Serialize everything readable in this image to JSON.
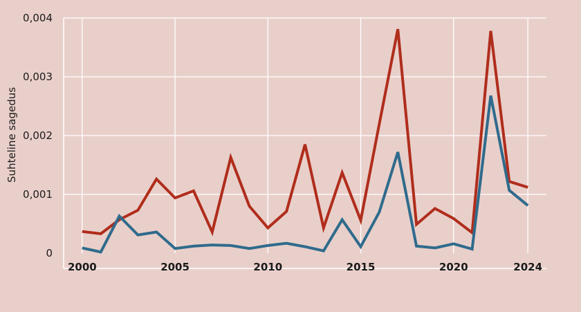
{
  "chart_data": {
    "type": "line",
    "title": "",
    "xlabel": "",
    "ylabel": "Suhteline sagedus",
    "xlim": [
      1999,
      2025
    ],
    "ylim": [
      0,
      0.004
    ],
    "grid": true,
    "legend": "none",
    "x_ticks": [
      2000,
      2005,
      2010,
      2015,
      2020,
      2024
    ],
    "x_tick_labels": [
      "2000",
      "2005",
      "2010",
      "2015",
      "2020",
      "2024"
    ],
    "y_ticks": [
      0,
      0.001,
      0.002,
      0.003,
      0.004
    ],
    "y_tick_labels": [
      "0",
      "0,001",
      "0,002",
      "0,003",
      "0,004"
    ],
    "x": [
      2000,
      2001,
      2002,
      2003,
      2004,
      2005,
      2006,
      2007,
      2008,
      2009,
      2010,
      2011,
      2012,
      2013,
      2014,
      2015,
      2016,
      2017,
      2018,
      2019,
      2020,
      2021,
      2022,
      2023,
      2024
    ],
    "series": [
      {
        "color": "#b02d1c",
        "values": [
          0.00037,
          0.00033,
          0.00057,
          0.00073,
          0.00126,
          0.00094,
          0.00106,
          0.00036,
          0.00163,
          0.0008,
          0.00043,
          0.00071,
          0.00185,
          0.00043,
          0.00137,
          0.00056,
          0.0022,
          0.00381,
          0.00049,
          0.00076,
          0.00059,
          0.00035,
          0.00378,
          0.00122,
          0.00112
        ]
      },
      {
        "color": "#2f6b8c",
        "values": [
          9e-05,
          2e-05,
          0.00063,
          0.00031,
          0.00036,
          8e-05,
          0.00012,
          0.00014,
          0.00013,
          8e-05,
          0.00013,
          0.00017,
          0.00011,
          4e-05,
          0.00057,
          0.00011,
          0.0007,
          0.00172,
          0.00012,
          9e-05,
          0.00016,
          7e-05,
          0.00268,
          0.00107,
          0.00081
        ]
      }
    ]
  }
}
